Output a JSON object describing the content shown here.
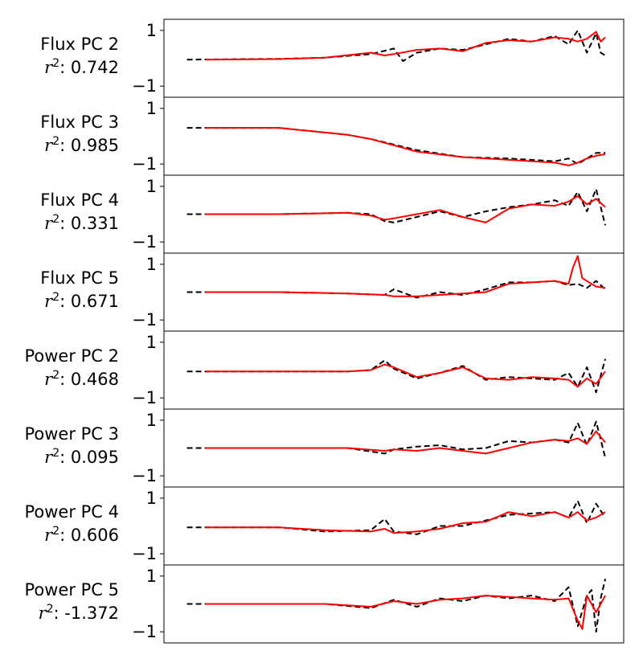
{
  "chart_data": [
    {
      "type": "line",
      "name": "Flux PC 2",
      "r2_label": ": 0.742",
      "ylim": [
        -1.4,
        1.4
      ],
      "yticks": [
        1,
        -1
      ],
      "ytick_labels": [
        "1",
        "−1"
      ],
      "xlim": [
        0,
        1
      ],
      "series": [
        {
          "style": "black-dashed",
          "color": "#000000",
          "x": [
            0.05,
            0.25,
            0.35,
            0.45,
            0.5,
            0.52,
            0.55,
            0.6,
            0.65,
            0.7,
            0.75,
            0.8,
            0.85,
            0.88,
            0.9,
            0.92,
            0.94,
            0.95,
            0.96
          ],
          "y": [
            -0.05,
            -0.02,
            0.02,
            0.15,
            0.35,
            -0.1,
            0.2,
            0.35,
            0.3,
            0.5,
            0.7,
            0.6,
            0.8,
            0.5,
            1.0,
            0.2,
            0.9,
            0.2,
            0.1
          ]
        },
        {
          "style": "red-solid",
          "color": "#ff0000",
          "x": [
            0.09,
            0.25,
            0.35,
            0.45,
            0.48,
            0.5,
            0.55,
            0.6,
            0.65,
            0.7,
            0.75,
            0.8,
            0.85,
            0.88,
            0.9,
            0.92,
            0.94,
            0.95,
            0.96
          ],
          "y": [
            -0.05,
            -0.03,
            0.02,
            0.2,
            0.1,
            0.15,
            0.3,
            0.35,
            0.25,
            0.55,
            0.65,
            0.6,
            0.75,
            0.7,
            0.6,
            0.7,
            0.95,
            0.6,
            0.75
          ]
        }
      ]
    },
    {
      "type": "line",
      "name": "Flux PC 3",
      "r2_label": ": 0.985",
      "ylim": [
        -1.4,
        1.4
      ],
      "yticks": [
        1,
        -1
      ],
      "ytick_labels": [
        "1",
        "−1"
      ],
      "xlim": [
        0,
        1
      ],
      "series": [
        {
          "style": "black-dashed",
          "color": "#000000",
          "x": [
            0.05,
            0.25,
            0.4,
            0.45,
            0.55,
            0.65,
            0.75,
            0.85,
            0.88,
            0.9,
            0.92,
            0.94,
            0.96
          ],
          "y": [
            0.3,
            0.3,
            0.05,
            -0.1,
            -0.5,
            -0.75,
            -0.8,
            -0.9,
            -0.8,
            -1.0,
            -0.8,
            -0.6,
            -0.6
          ]
        },
        {
          "style": "red-solid",
          "color": "#ff0000",
          "x": [
            0.09,
            0.25,
            0.4,
            0.45,
            0.55,
            0.65,
            0.75,
            0.85,
            0.88,
            0.9,
            0.92,
            0.94,
            0.96
          ],
          "y": [
            0.3,
            0.3,
            0.05,
            -0.1,
            -0.55,
            -0.75,
            -0.85,
            -0.95,
            -1.05,
            -0.95,
            -0.8,
            -0.7,
            -0.65
          ]
        }
      ]
    },
    {
      "type": "line",
      "name": "Flux PC 4",
      "r2_label": ": 0.331",
      "ylim": [
        -1.4,
        1.4
      ],
      "yticks": [
        1,
        -1
      ],
      "ytick_labels": [
        "1",
        "−1"
      ],
      "xlim": [
        0,
        1
      ],
      "series": [
        {
          "style": "black-dashed",
          "color": "#000000",
          "x": [
            0.05,
            0.25,
            0.4,
            0.45,
            0.48,
            0.5,
            0.55,
            0.6,
            0.65,
            0.7,
            0.75,
            0.8,
            0.85,
            0.88,
            0.9,
            0.92,
            0.94,
            0.96
          ],
          "y": [
            0.0,
            0.0,
            0.05,
            0.0,
            -0.25,
            -0.3,
            -0.1,
            0.1,
            -0.1,
            0.1,
            0.25,
            0.35,
            0.5,
            0.3,
            0.8,
            0.1,
            0.9,
            -0.4
          ]
        },
        {
          "style": "red-solid",
          "color": "#ff0000",
          "x": [
            0.09,
            0.25,
            0.4,
            0.45,
            0.48,
            0.5,
            0.55,
            0.6,
            0.65,
            0.7,
            0.75,
            0.8,
            0.85,
            0.88,
            0.9,
            0.92,
            0.94,
            0.96
          ],
          "y": [
            0.0,
            0.0,
            0.05,
            -0.05,
            -0.2,
            -0.15,
            0.0,
            0.15,
            -0.1,
            -0.3,
            0.2,
            0.35,
            0.3,
            0.45,
            0.65,
            0.35,
            0.55,
            0.25
          ]
        }
      ]
    },
    {
      "type": "line",
      "name": "Flux PC 5",
      "r2_label": ": 0.671",
      "ylim": [
        -1.4,
        1.4
      ],
      "yticks": [
        1,
        -1
      ],
      "ytick_labels": [
        "1",
        "−1"
      ],
      "xlim": [
        0,
        1
      ],
      "series": [
        {
          "style": "black-dashed",
          "color": "#000000",
          "x": [
            0.05,
            0.25,
            0.4,
            0.48,
            0.5,
            0.55,
            0.6,
            0.65,
            0.7,
            0.75,
            0.8,
            0.85,
            0.88,
            0.9,
            0.92,
            0.94,
            0.96
          ],
          "y": [
            0.0,
            0.0,
            -0.05,
            -0.1,
            0.1,
            -0.2,
            0.0,
            -0.1,
            0.1,
            0.35,
            0.35,
            0.4,
            0.25,
            0.3,
            0.15,
            0.4,
            0.1
          ]
        },
        {
          "style": "red-solid",
          "color": "#ff0000",
          "x": [
            0.09,
            0.25,
            0.4,
            0.48,
            0.5,
            0.55,
            0.6,
            0.65,
            0.7,
            0.75,
            0.8,
            0.85,
            0.88,
            0.89,
            0.9,
            0.91,
            0.94,
            0.96
          ],
          "y": [
            0.0,
            0.0,
            -0.05,
            -0.1,
            -0.15,
            -0.15,
            -0.1,
            -0.05,
            0.0,
            0.3,
            0.35,
            0.4,
            0.3,
            0.9,
            1.3,
            0.5,
            0.2,
            0.15
          ]
        }
      ]
    },
    {
      "type": "line",
      "name": "Power PC 2",
      "r2_label": ": 0.468",
      "ylim": [
        -1.4,
        1.4
      ],
      "yticks": [
        1,
        -1
      ],
      "ytick_labels": [
        "1",
        "−1"
      ],
      "xlim": [
        0,
        1
      ],
      "series": [
        {
          "style": "black-dashed",
          "color": "#000000",
          "x": [
            0.05,
            0.25,
            0.4,
            0.45,
            0.48,
            0.5,
            0.55,
            0.6,
            0.65,
            0.7,
            0.75,
            0.8,
            0.85,
            0.88,
            0.9,
            0.92,
            0.94,
            0.96
          ],
          "y": [
            -0.05,
            -0.05,
            -0.05,
            0.0,
            0.35,
            0.05,
            -0.3,
            -0.1,
            0.15,
            -0.35,
            -0.25,
            -0.3,
            -0.35,
            -0.1,
            -0.6,
            0.1,
            -0.8,
            0.4
          ]
        },
        {
          "style": "red-solid",
          "color": "#ff0000",
          "x": [
            0.09,
            0.25,
            0.4,
            0.45,
            0.48,
            0.5,
            0.55,
            0.6,
            0.65,
            0.7,
            0.75,
            0.8,
            0.85,
            0.88,
            0.9,
            0.92,
            0.94,
            0.96
          ],
          "y": [
            -0.05,
            -0.05,
            -0.05,
            0.0,
            0.2,
            0.1,
            -0.25,
            -0.1,
            0.1,
            -0.3,
            -0.35,
            -0.25,
            -0.3,
            -0.35,
            -0.6,
            -0.3,
            -0.5,
            -0.05
          ]
        }
      ]
    },
    {
      "type": "line",
      "name": "Power PC 3",
      "r2_label": ": 0.095",
      "ylim": [
        -1.4,
        1.4
      ],
      "yticks": [
        1,
        -1
      ],
      "ytick_labels": [
        "1",
        "−1"
      ],
      "xlim": [
        0,
        1
      ],
      "series": [
        {
          "style": "black-dashed",
          "color": "#000000",
          "x": [
            0.05,
            0.25,
            0.4,
            0.48,
            0.5,
            0.55,
            0.6,
            0.65,
            0.7,
            0.75,
            0.8,
            0.85,
            0.88,
            0.9,
            0.92,
            0.94,
            0.96
          ],
          "y": [
            0.0,
            0.0,
            0.0,
            -0.2,
            -0.05,
            0.05,
            0.1,
            -0.05,
            0.0,
            0.25,
            0.2,
            0.3,
            0.2,
            0.9,
            0.1,
            0.95,
            -0.35
          ]
        },
        {
          "style": "red-solid",
          "color": "#ff0000",
          "x": [
            0.09,
            0.25,
            0.4,
            0.48,
            0.5,
            0.55,
            0.6,
            0.65,
            0.7,
            0.75,
            0.8,
            0.85,
            0.88,
            0.9,
            0.92,
            0.94,
            0.96
          ],
          "y": [
            0.0,
            0.0,
            0.0,
            -0.1,
            -0.05,
            -0.1,
            0.0,
            -0.1,
            -0.2,
            0.0,
            0.2,
            0.3,
            0.25,
            0.35,
            0.15,
            0.6,
            0.2
          ]
        }
      ]
    },
    {
      "type": "line",
      "name": "Power PC 4",
      "r2_label": ": 0.606",
      "ylim": [
        -1.4,
        1.4
      ],
      "yticks": [
        1,
        -1
      ],
      "ytick_labels": [
        "1",
        "−1"
      ],
      "xlim": [
        0,
        1
      ],
      "series": [
        {
          "style": "black-dashed",
          "color": "#000000",
          "x": [
            0.05,
            0.25,
            0.35,
            0.45,
            0.48,
            0.5,
            0.55,
            0.6,
            0.65,
            0.7,
            0.75,
            0.8,
            0.85,
            0.88,
            0.9,
            0.92,
            0.94,
            0.96
          ],
          "y": [
            -0.05,
            -0.05,
            -0.2,
            -0.15,
            0.25,
            -0.2,
            -0.3,
            0.0,
            0.0,
            0.2,
            0.4,
            0.45,
            0.5,
            0.3,
            0.9,
            0.1,
            0.8,
            0.3
          ]
        },
        {
          "style": "red-solid",
          "color": "#ff0000",
          "x": [
            0.09,
            0.25,
            0.35,
            0.45,
            0.48,
            0.5,
            0.55,
            0.6,
            0.65,
            0.7,
            0.75,
            0.8,
            0.85,
            0.88,
            0.9,
            0.92,
            0.94,
            0.96
          ],
          "y": [
            -0.05,
            -0.05,
            -0.15,
            -0.2,
            -0.1,
            -0.25,
            -0.2,
            -0.1,
            0.1,
            0.15,
            0.5,
            0.35,
            0.5,
            0.3,
            0.5,
            0.2,
            0.3,
            0.5
          ]
        }
      ]
    },
    {
      "type": "line",
      "name": "Power PC 5",
      "r2_label": ": -1.372",
      "ylim": [
        -1.4,
        1.4
      ],
      "yticks": [
        1,
        -1
      ],
      "ytick_labels": [
        "1",
        "−1"
      ],
      "xlim": [
        0,
        1
      ],
      "series": [
        {
          "style": "black-dashed",
          "color": "#000000",
          "x": [
            0.05,
            0.25,
            0.35,
            0.45,
            0.5,
            0.55,
            0.6,
            0.65,
            0.7,
            0.75,
            0.8,
            0.85,
            0.88,
            0.9,
            0.92,
            0.93,
            0.94,
            0.95,
            0.96
          ],
          "y": [
            0.0,
            0.0,
            0.0,
            -0.15,
            0.15,
            -0.1,
            0.2,
            0.1,
            0.3,
            0.2,
            0.3,
            0.1,
            0.6,
            -0.8,
            0.3,
            0.5,
            -1.0,
            0.2,
            0.9
          ]
        },
        {
          "style": "red-solid",
          "color": "#ff0000",
          "x": [
            0.09,
            0.25,
            0.35,
            0.45,
            0.5,
            0.55,
            0.6,
            0.65,
            0.7,
            0.75,
            0.8,
            0.85,
            0.88,
            0.9,
            0.91,
            0.92,
            0.94,
            0.95,
            0.96
          ],
          "y": [
            0.0,
            0.0,
            0.0,
            -0.1,
            0.1,
            0.0,
            0.15,
            0.2,
            0.3,
            0.25,
            0.2,
            0.15,
            0.2,
            -0.6,
            -0.9,
            0.3,
            -0.3,
            0.0,
            0.3
          ]
        }
      ]
    }
  ]
}
